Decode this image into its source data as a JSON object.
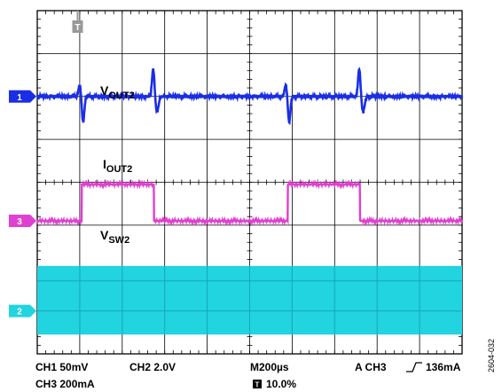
{
  "chart_data": {
    "type": "line",
    "title": "",
    "grid": true,
    "divisions": {
      "horizontal": 10,
      "vertical": 8
    },
    "trigger_marker": "T",
    "period_div": 4.85,
    "channels": [
      {
        "id": "1",
        "name": "VOUT2",
        "label_main": "V",
        "label_sub": "OUT2",
        "color": "#1a2ee6",
        "ground_div": 2.0,
        "scale": "50mV",
        "baseline_div": 2.0,
        "events": [
          {
            "t_div": 1.05,
            "kind": "dip",
            "amp_div": 0.6
          },
          {
            "t_div": 2.75,
            "kind": "spike",
            "amp_div": 0.65
          }
        ]
      },
      {
        "id": "3",
        "name": "IOUT2",
        "label_main": "I",
        "label_sub": "OUT2",
        "color": "#e040d0",
        "ground_div": 4.9,
        "scale": "200mA",
        "low_div": 4.9,
        "high_div": 4.05,
        "pulses": [
          [
            1.05,
            2.75
          ]
        ]
      },
      {
        "id": "2",
        "name": "VSW2",
        "label_main": "V",
        "label_sub": "SW2",
        "color": "#22d3e0",
        "ground_div": 7.0,
        "scale": "2.0V",
        "band_div": [
          5.95,
          7.55
        ]
      }
    ]
  },
  "footer": {
    "ch1": "CH1  50mV",
    "ch2": "CH2  2.0V",
    "time": "M200µs",
    "trigger": "A  CH3",
    "trigger_level": "136mA",
    "ch3": "CH3  200mA",
    "trigger_pos": "10.0%",
    "trigger_pos_marker": "T"
  },
  "figure_id": "2604-032"
}
